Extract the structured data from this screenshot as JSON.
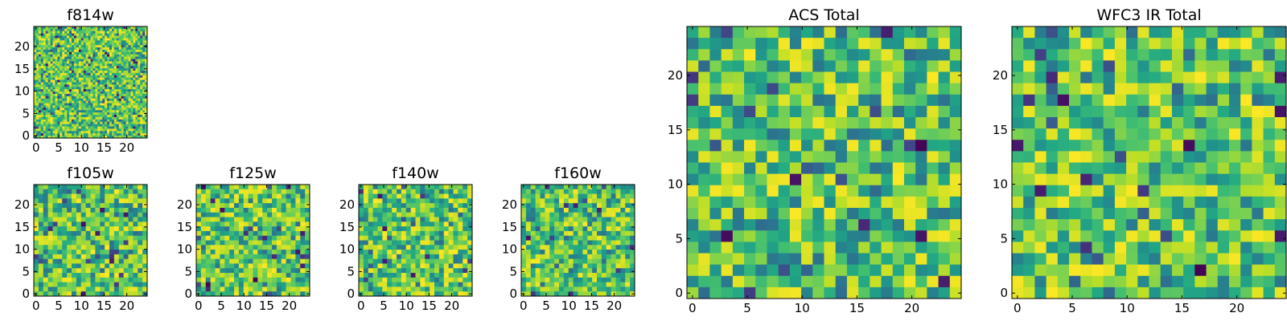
{
  "chart_data": [
    {
      "type": "heatmap",
      "title": "f814w",
      "xlim": [
        0,
        24
      ],
      "ylim": [
        0,
        24
      ],
      "xticks": [
        "0",
        "5",
        "10",
        "15",
        "20"
      ],
      "yticks": [
        "0",
        "5",
        "10",
        "15",
        "20"
      ],
      "grid": false,
      "colormap": "viridis",
      "seed": 11,
      "cells": 48
    },
    {
      "type": "heatmap",
      "title": "f105w",
      "xlim": [
        0,
        24
      ],
      "ylim": [
        0,
        24
      ],
      "xticks": [
        "0",
        "5",
        "10",
        "15",
        "20"
      ],
      "yticks": [
        "0",
        "5",
        "10",
        "15",
        "20"
      ],
      "grid": false,
      "colormap": "viridis",
      "seed": 23,
      "cells": 24
    },
    {
      "type": "heatmap",
      "title": "f125w",
      "xlim": [
        0,
        24
      ],
      "ylim": [
        0,
        24
      ],
      "xticks": [
        "0",
        "5",
        "10",
        "15",
        "20"
      ],
      "yticks": [
        "0",
        "5",
        "10",
        "15",
        "20"
      ],
      "grid": false,
      "colormap": "viridis",
      "seed": 37,
      "cells": 24
    },
    {
      "type": "heatmap",
      "title": "f140w",
      "xlim": [
        0,
        24
      ],
      "ylim": [
        0,
        24
      ],
      "xticks": [
        "0",
        "5",
        "10",
        "15",
        "20"
      ],
      "yticks": [
        "0",
        "5",
        "10",
        "15",
        "20"
      ],
      "grid": false,
      "colormap": "viridis",
      "seed": 41,
      "cells": 24
    },
    {
      "type": "heatmap",
      "title": "f160w",
      "xlim": [
        0,
        24
      ],
      "ylim": [
        0,
        24
      ],
      "xticks": [
        "0",
        "5",
        "10",
        "15",
        "20"
      ],
      "yticks": [
        "0",
        "5",
        "10",
        "15",
        "20"
      ],
      "grid": false,
      "colormap": "viridis",
      "seed": 53,
      "cells": 24
    },
    {
      "type": "heatmap",
      "title": "ACS Total",
      "xlim": [
        0,
        24
      ],
      "ylim": [
        0,
        24
      ],
      "xticks": [
        "0",
        "5",
        "10",
        "15",
        "20"
      ],
      "yticks": [
        "0",
        "5",
        "10",
        "15",
        "20"
      ],
      "grid": false,
      "colormap": "viridis",
      "seed": 67,
      "cells": 24
    },
    {
      "type": "heatmap",
      "title": "WFC3 IR Total",
      "xlim": [
        0,
        24
      ],
      "ylim": [
        0,
        24
      ],
      "xticks": [
        "0",
        "5",
        "10",
        "15",
        "20"
      ],
      "yticks": [
        "0",
        "5",
        "10",
        "15",
        "20"
      ],
      "grid": false,
      "colormap": "viridis",
      "seed": 79,
      "cells": 24
    }
  ]
}
